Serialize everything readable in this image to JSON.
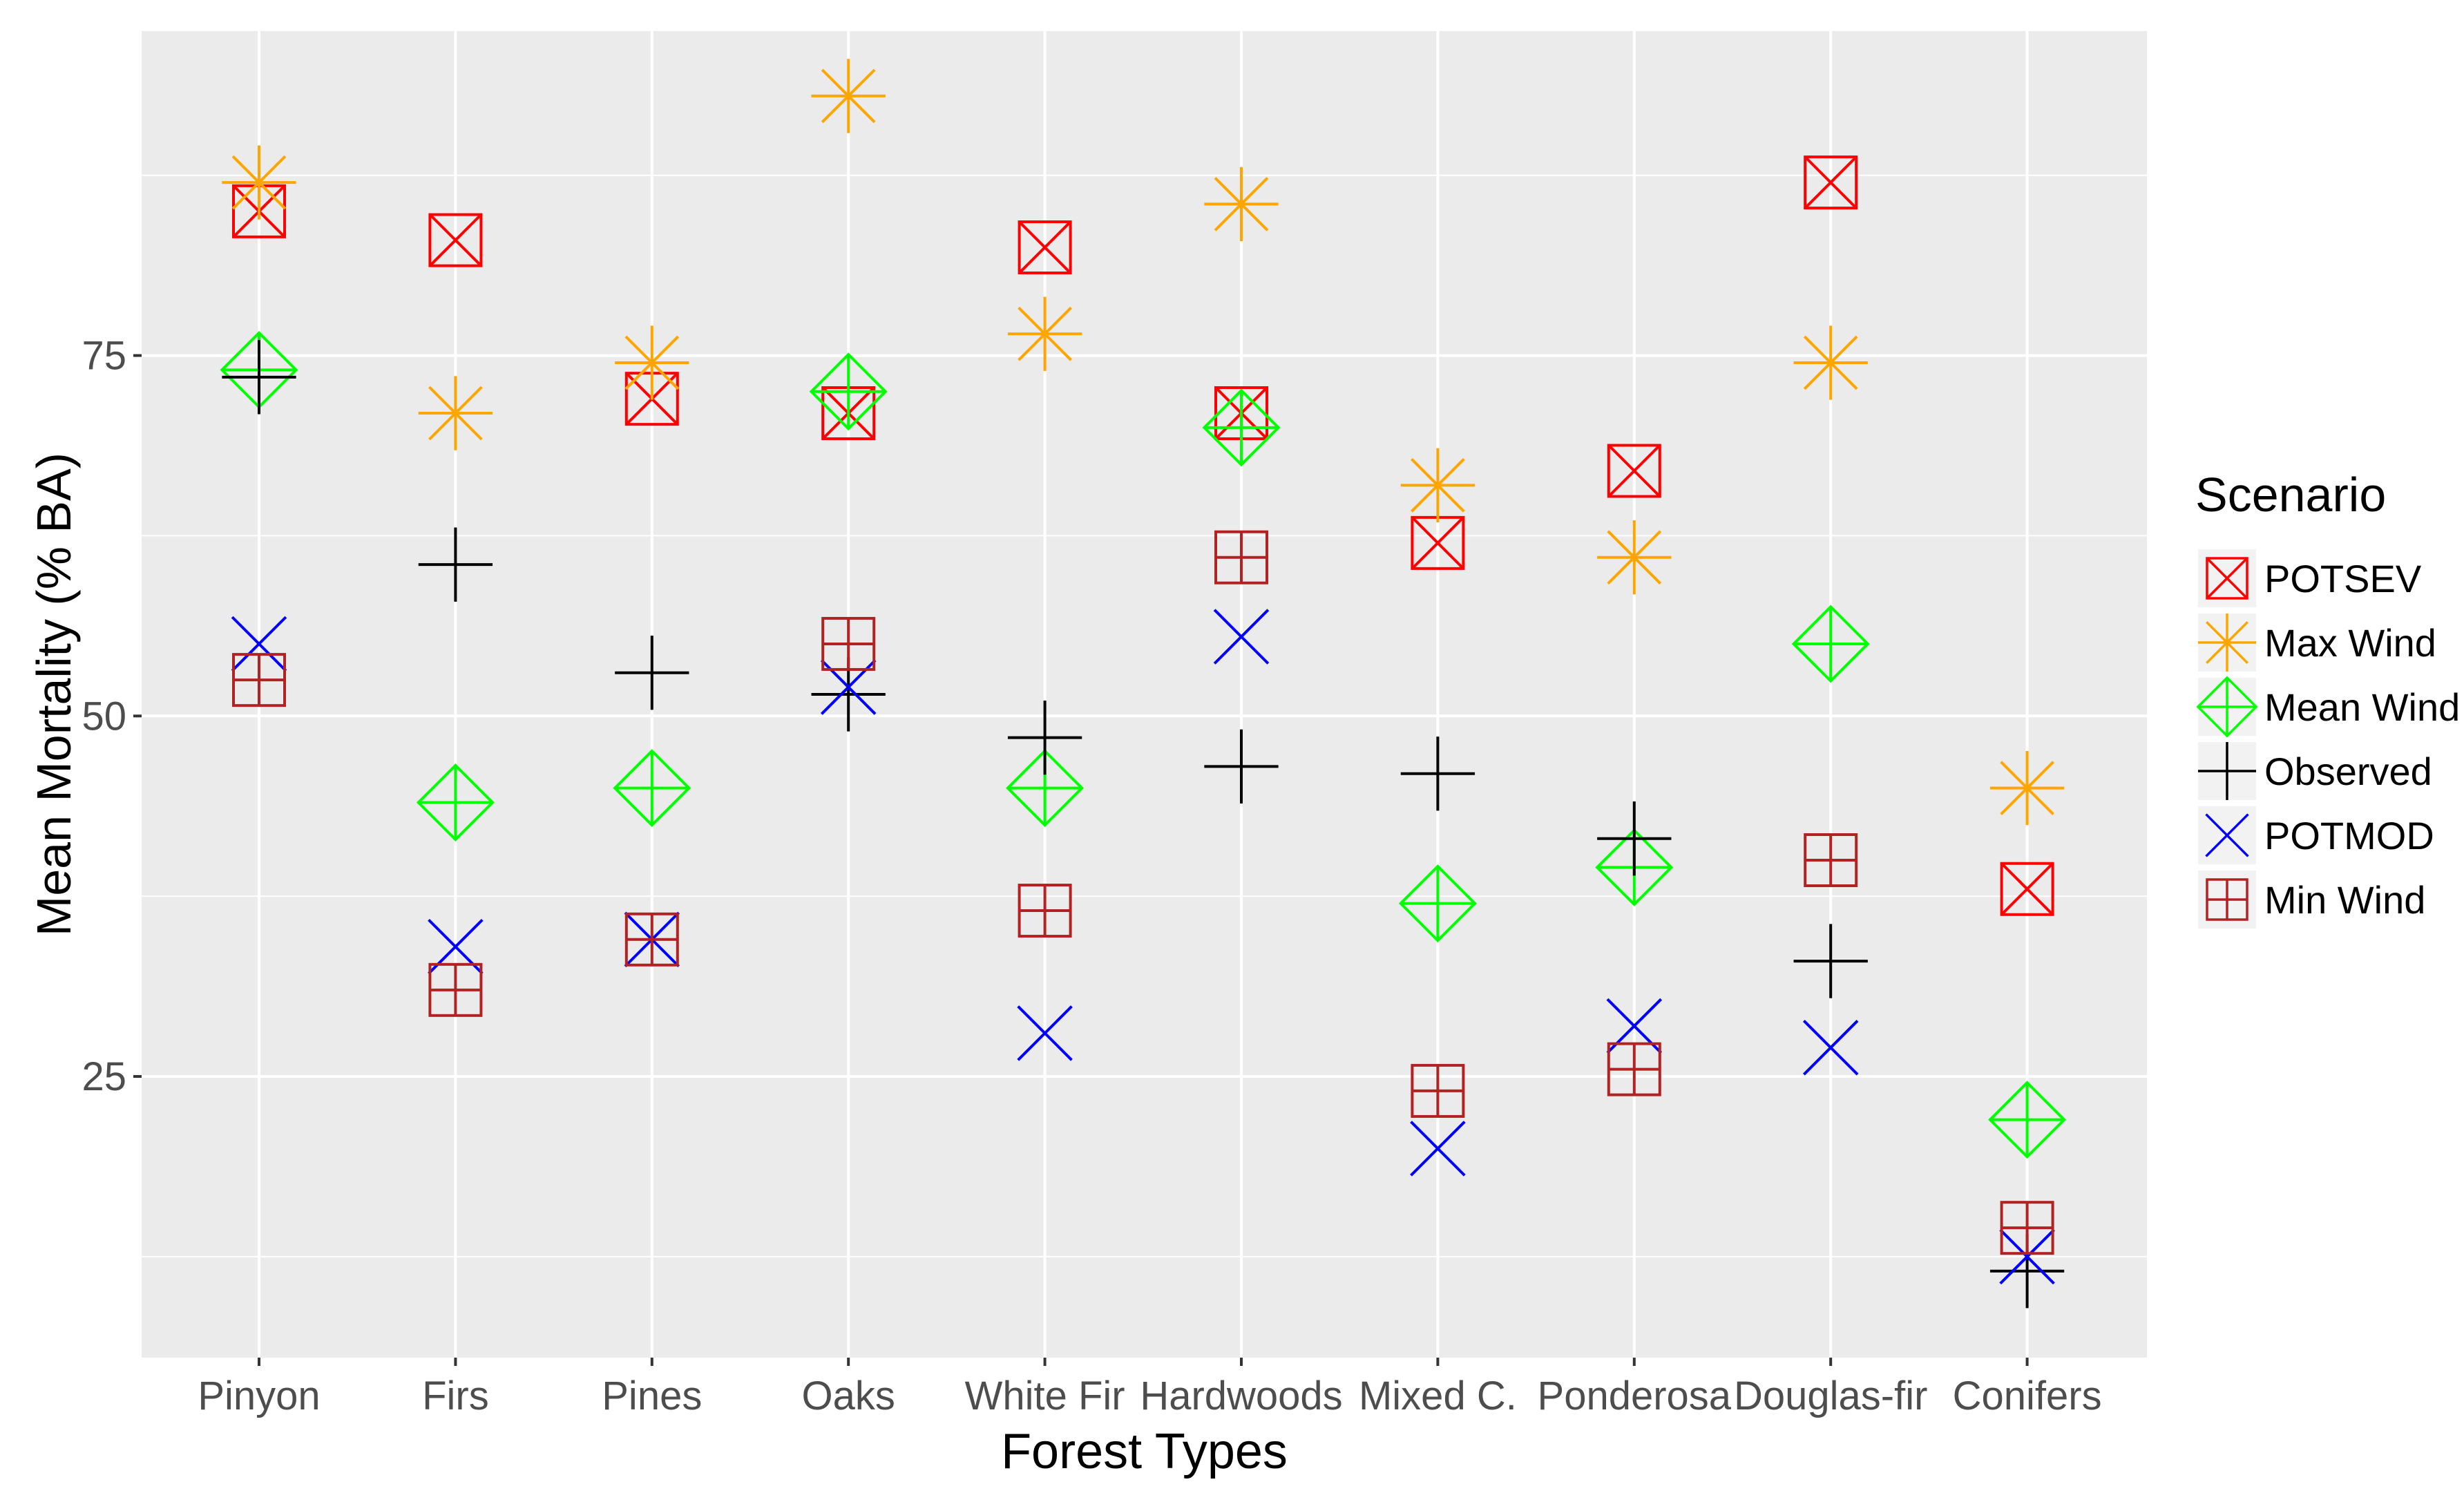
{
  "chart_data": {
    "type": "scatter",
    "title": "",
    "xlabel": "Forest Types",
    "ylabel": "Mean Mortality (% BA)",
    "categories": [
      "Pinyon",
      "Firs",
      "Pines",
      "Oaks",
      "White Fir",
      "Hardwoods",
      "Mixed C.",
      "Ponderosa",
      "Douglas-fir",
      "Conifers"
    ],
    "ylim": [
      5.5,
      97.5
    ],
    "yticks": [
      25,
      50,
      75
    ],
    "yticks_labels": [
      "25",
      "50",
      "75"
    ],
    "grid": true,
    "legend": {
      "title": "Scenario",
      "position": "right"
    },
    "series": [
      {
        "name": "POTSEV",
        "shape": "boxed-x",
        "color": "#ff0000",
        "values": [
          85,
          83,
          72,
          71,
          82.5,
          71,
          62,
          67,
          87,
          38
        ]
      },
      {
        "name": "Max Wind",
        "shape": "asterisk",
        "color": "#ffa500",
        "values": [
          87,
          71,
          74.5,
          93,
          76.5,
          85.5,
          66,
          61,
          74.5,
          45
        ]
      },
      {
        "name": "Mean Wind",
        "shape": "diamond-plus",
        "color": "#00ff00",
        "values": [
          74,
          44,
          45,
          72.5,
          45,
          70,
          37,
          39.5,
          55,
          22
        ]
      },
      {
        "name": "Observed",
        "shape": "plus",
        "color": "#000000",
        "values": [
          73.5,
          60.5,
          53,
          51.5,
          48.5,
          46.5,
          46,
          41.5,
          33,
          11.5
        ]
      },
      {
        "name": "POTMOD",
        "shape": "x",
        "color": "#0000ff",
        "values": [
          55,
          34,
          34.5,
          52,
          28,
          55.5,
          20,
          28.5,
          27,
          12.5
        ]
      },
      {
        "name": "Min Wind",
        "shape": "boxed-plus",
        "color": "#b22222",
        "values": [
          52.5,
          31,
          34.5,
          55,
          36.5,
          61,
          24,
          25.5,
          40,
          14.5
        ]
      }
    ]
  }
}
